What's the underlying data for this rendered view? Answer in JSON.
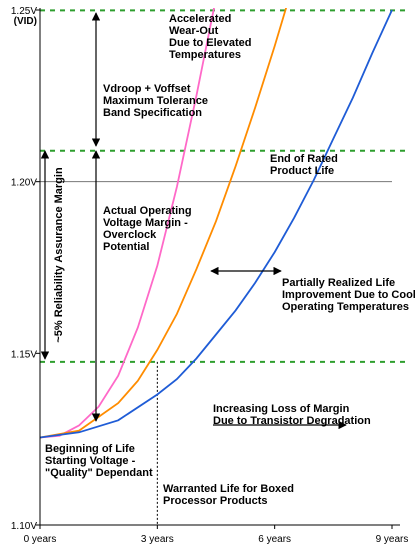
{
  "chart_data": {
    "type": "line",
    "xlim": [
      0,
      9
    ],
    "ylim": [
      1.1,
      1.25
    ],
    "x_ticks": [
      {
        "value": 0,
        "label": "0 years"
      },
      {
        "value": 3,
        "label": "3 years"
      },
      {
        "value": 6,
        "label": "6 years"
      },
      {
        "value": 9,
        "label": "9 years"
      }
    ],
    "y_ticks": [
      {
        "value": 1.25,
        "label": "1.25V"
      },
      {
        "value": 1.2,
        "label": "1.20V"
      },
      {
        "value": 1.15,
        "label": "1.15V"
      },
      {
        "value": 1.1,
        "label": "1.10V"
      }
    ],
    "y_top_sublabel": "(VID)",
    "reference_lines": {
      "dashed_y": [
        1.2499,
        1.209,
        1.1475
      ],
      "solid_y": [
        1.2
      ],
      "vertical_dotted_x": 3
    },
    "series": [
      {
        "color": "#ff69c8",
        "x": [
          0,
          0.5,
          1,
          1.5,
          2,
          2.5,
          3,
          3.5,
          4,
          4.5,
          5
        ],
        "y": [
          1.1255,
          1.126,
          1.129,
          1.1345,
          1.1435,
          1.1575,
          1.1755,
          1.1985,
          1.225,
          1.2535,
          1.285
        ]
      },
      {
        "color": "#ff8c00",
        "x": [
          0,
          1,
          2,
          2.5,
          3,
          3.5,
          4,
          4.5,
          5,
          5.5,
          6,
          6.5,
          7
        ],
        "y": [
          1.1255,
          1.1275,
          1.1355,
          1.142,
          1.151,
          1.1615,
          1.1745,
          1.1885,
          1.2045,
          1.2215,
          1.2395,
          1.2585,
          1.2765
        ]
      },
      {
        "color": "#1f5cd6",
        "x": [
          0,
          1,
          2,
          3,
          3.5,
          4,
          4.5,
          5,
          5.5,
          6,
          6.5,
          7,
          7.5,
          8,
          8.5,
          9
        ],
        "y": [
          1.1255,
          1.127,
          1.1305,
          1.138,
          1.1425,
          1.1485,
          1.1555,
          1.1625,
          1.1705,
          1.1795,
          1.1895,
          1.2005,
          1.2125,
          1.2245,
          1.2375,
          1.25
        ]
      }
    ],
    "annotations": [
      {
        "lines": [
          "Accelerated",
          "Wear-Out",
          "Due to Elevated",
          "Temperatures"
        ]
      },
      {
        "lines": [
          "Vdroop + Voffset",
          "Maximum Tolerance",
          "Band Specification"
        ]
      },
      {
        "lines": [
          "End of Rated",
          "Product Life"
        ]
      },
      {
        "lines": [
          "Actual Operating",
          "Voltage Margin -",
          "Overclock",
          "Potential"
        ]
      },
      {
        "lines": [
          "Partially Realized Life",
          "Improvement Due to Cooler",
          "Operating Temperatures"
        ]
      },
      {
        "lines": [
          "Increasing Loss of Margin",
          "Due to Transistor Degradation"
        ]
      },
      {
        "lines": [
          "Beginning of Life",
          "Starting Voltage -",
          "\"Quality\" Dependant"
        ]
      },
      {
        "lines": [
          "Warranted Life for Boxed",
          "Processor Products"
        ]
      },
      {
        "lines": [
          "~5% Reliability Assurance Margin"
        ]
      }
    ],
    "grid": false,
    "legend": "none"
  }
}
